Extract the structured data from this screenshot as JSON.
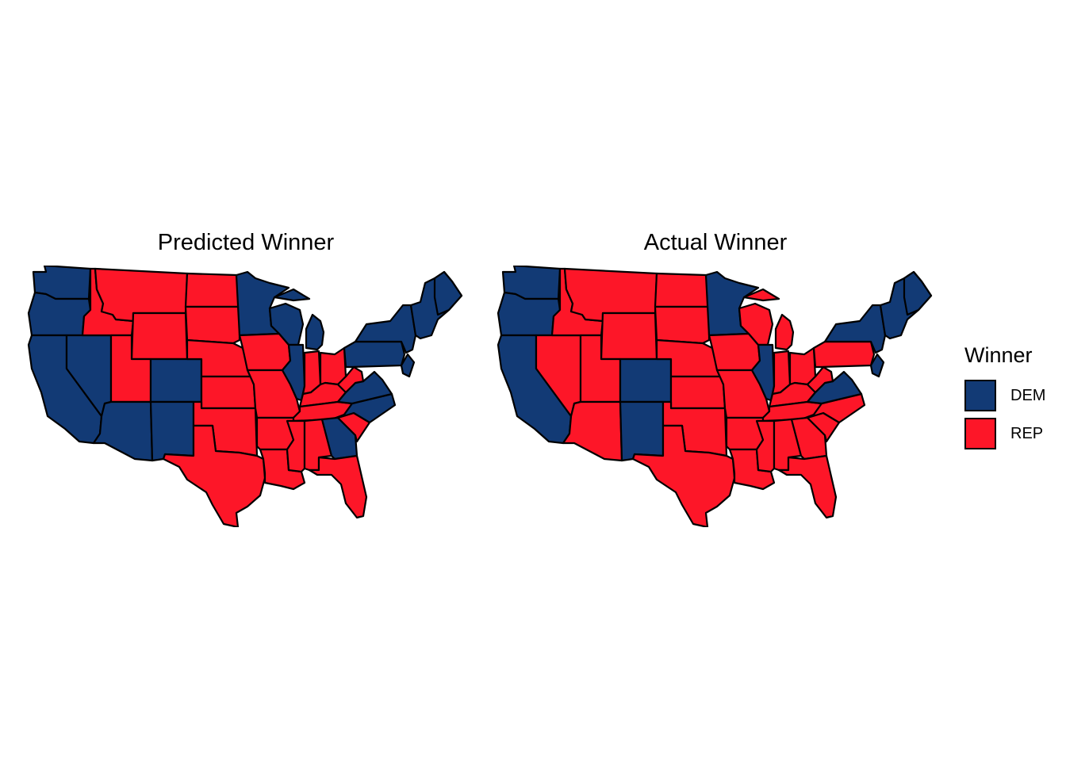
{
  "colors": {
    "DEM": "#123a75",
    "REP": "#fd1628"
  },
  "panels": [
    {
      "title": "Predicted Winner",
      "states": {
        "WA": "DEM",
        "OR": "DEM",
        "CA": "DEM",
        "NV": "DEM",
        "ID": "REP",
        "MT": "REP",
        "WY": "REP",
        "UT": "REP",
        "AZ": "DEM",
        "CO": "DEM",
        "NM": "DEM",
        "ND": "REP",
        "SD": "REP",
        "NE": "REP",
        "KS": "REP",
        "OK": "REP",
        "TX": "REP",
        "MN": "DEM",
        "IA": "REP",
        "MO": "REP",
        "AR": "REP",
        "LA": "REP",
        "WI": "DEM",
        "IL": "DEM",
        "MI": "DEM",
        "IN": "REP",
        "OH": "REP",
        "KY": "REP",
        "TN": "REP",
        "MS": "REP",
        "AL": "REP",
        "GA": "DEM",
        "FL": "REP",
        "SC": "REP",
        "NC": "DEM",
        "VA": "DEM",
        "WV": "REP",
        "PA": "DEM",
        "NY": "DEM",
        "ME": "DEM",
        "NE_STATES": "DEM"
      }
    },
    {
      "title": "Actual Winner",
      "states": {
        "WA": "DEM",
        "OR": "DEM",
        "CA": "DEM",
        "NV": "REP",
        "ID": "REP",
        "MT": "REP",
        "WY": "REP",
        "UT": "REP",
        "AZ": "REP",
        "CO": "DEM",
        "NM": "DEM",
        "ND": "REP",
        "SD": "REP",
        "NE": "REP",
        "KS": "REP",
        "OK": "REP",
        "TX": "REP",
        "MN": "DEM",
        "IA": "REP",
        "MO": "REP",
        "AR": "REP",
        "LA": "REP",
        "WI": "REP",
        "IL": "DEM",
        "MI": "REP",
        "IN": "REP",
        "OH": "REP",
        "KY": "REP",
        "TN": "REP",
        "MS": "REP",
        "AL": "REP",
        "GA": "REP",
        "FL": "REP",
        "SC": "REP",
        "NC": "REP",
        "VA": "DEM",
        "WV": "REP",
        "PA": "REP",
        "NY": "DEM",
        "ME": "DEM",
        "NE_STATES": "DEM"
      }
    }
  ],
  "legend": {
    "title": "Winner",
    "items": [
      {
        "label": "DEM",
        "party": "DEM"
      },
      {
        "label": "REP",
        "party": "REP"
      }
    ]
  }
}
